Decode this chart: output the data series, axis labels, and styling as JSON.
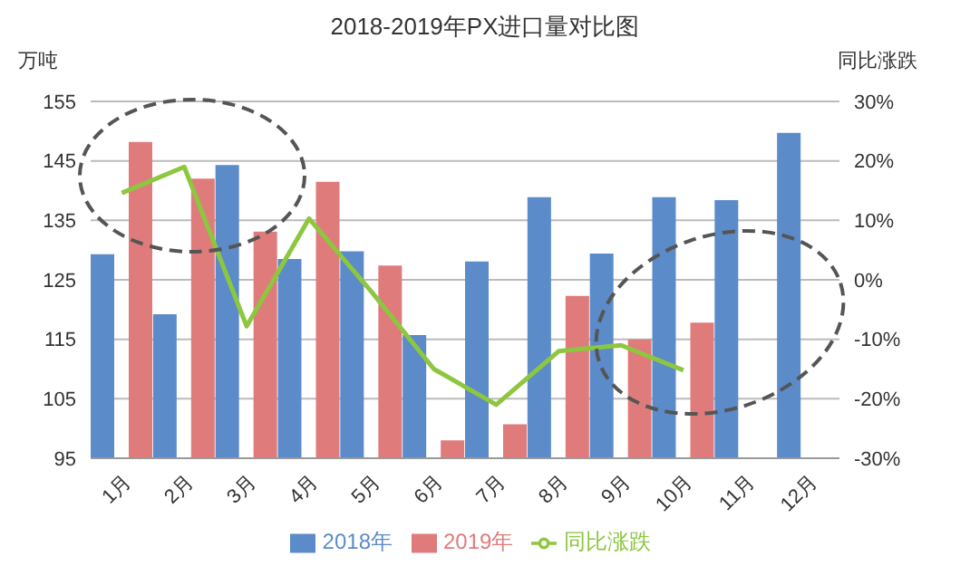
{
  "chart_data": {
    "type": "bar",
    "title": "2018-2019年PX进口量对比图",
    "ylabel": "万吨",
    "y2label": "同比涨跌",
    "categories": [
      "1月",
      "2月",
      "3月",
      "4月",
      "5月",
      "6月",
      "7月",
      "8月",
      "9月",
      "10月",
      "11月",
      "12月"
    ],
    "series": [
      {
        "name": "2018年",
        "color": "#5b8bc9",
        "values": [
          129.3,
          119.2,
          144.3,
          128.5,
          129.8,
          115.7,
          128.1,
          138.9,
          129.4,
          138.9,
          138.4,
          149.7
        ]
      },
      {
        "name": "2019年",
        "color": "#e07b7b",
        "values": [
          148.2,
          142.0,
          133.1,
          141.5,
          127.4,
          98.0,
          100.7,
          122.3,
          115.0,
          117.8,
          null,
          null
        ]
      },
      {
        "name": "同比涨跌",
        "type": "line",
        "axis": "y2",
        "color": "#8dc63f",
        "values": [
          14.6,
          19.0,
          -7.8,
          10.3,
          -2,
          -15,
          -21,
          -12,
          -11,
          -15.2,
          null,
          null
        ]
      }
    ],
    "ylim": [
      95,
      155
    ],
    "yticks": [
      95,
      105,
      115,
      125,
      135,
      145,
      155
    ],
    "y2lim": [
      -30,
      30
    ],
    "y2ticks": [
      {
        "value": -30,
        "label": "-30%"
      },
      {
        "value": -20,
        "label": "-20%"
      },
      {
        "value": -10,
        "label": "-10%"
      },
      {
        "value": 0,
        "label": "0%"
      },
      {
        "value": 10,
        "label": "10%"
      },
      {
        "value": 20,
        "label": "20%"
      },
      {
        "value": 30,
        "label": "30%"
      }
    ],
    "grid": "y",
    "legend": "bottom",
    "marker": "none",
    "line_style": "solid"
  }
}
